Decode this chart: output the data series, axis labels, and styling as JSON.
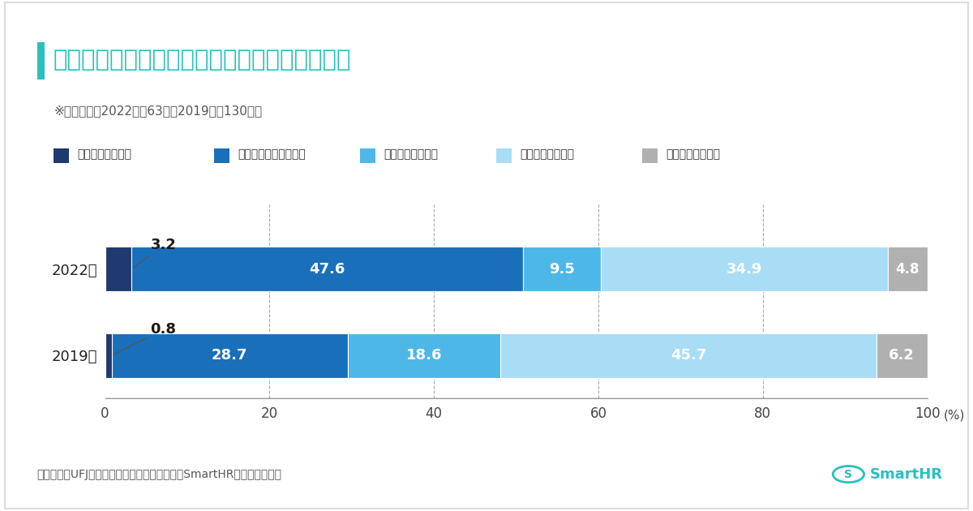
{
  "title": "回答企業の人事業務の自動化の検討・実施状況",
  "title_color": "#2abfbf",
  "subtitle": "※回答企業（2022年：63社、2019年：130社）",
  "source": "出所：三菱UFJリサーチ＆コンサルティングとSmartHRによる共同調査",
  "years": [
    "2022年",
    "2019年"
  ],
  "categories": [
    "ほぼ全領域で実施",
    "特定の領域でのみ実施",
    "実施に向け準備中",
    "検討中、検討予定",
    "検討の予定もない"
  ],
  "colors": [
    "#1e3a6e",
    "#1a6fbb",
    "#4db8e8",
    "#a8ddf5",
    "#b0b0b0"
  ],
  "data_2022": [
    3.2,
    47.6,
    9.5,
    34.9,
    4.8
  ],
  "data_2019": [
    0.8,
    28.7,
    18.6,
    45.7,
    6.2
  ],
  "background_color": "#ffffff",
  "bar_height": 0.52,
  "xlim": [
    0,
    100
  ],
  "xticks": [
    0,
    20,
    40,
    60,
    80,
    100
  ],
  "vline_positions": [
    20,
    40,
    60,
    80
  ],
  "annot_2022_val": "3.2",
  "annot_2019_val": "0.8"
}
